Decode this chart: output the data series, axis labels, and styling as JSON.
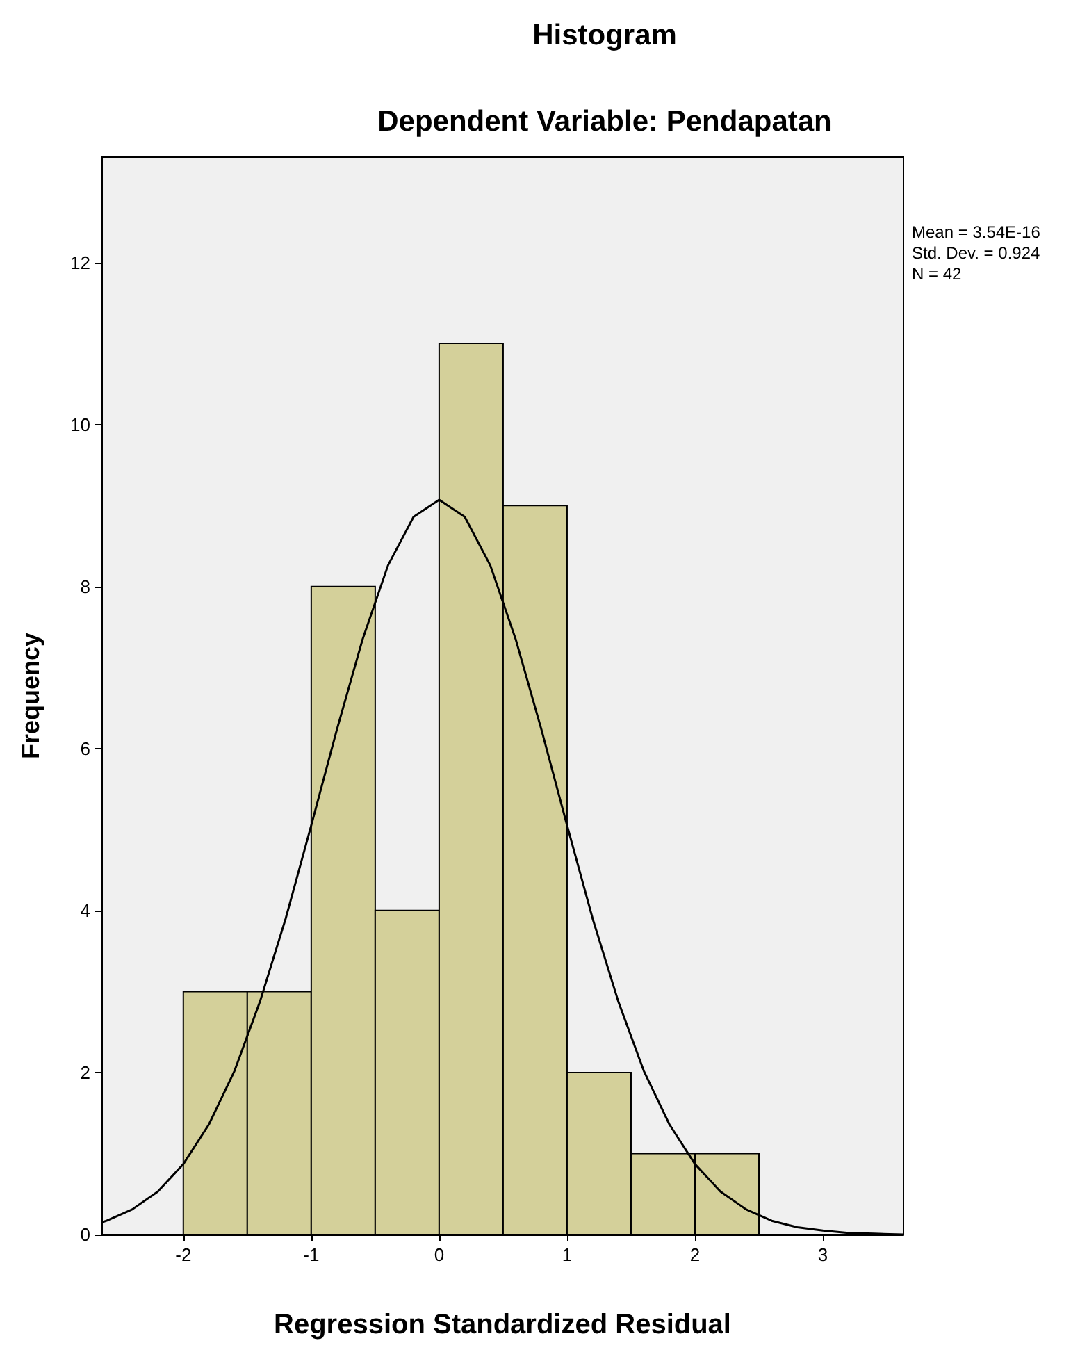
{
  "chart_data": {
    "type": "histogram",
    "title": "Histogram",
    "subtitle": "Dependent Variable: Pendapatan",
    "xlabel": "Regression Standardized Residual",
    "ylabel": "Frequency",
    "annotations": [
      "Mean = 3.54E-16",
      "Std. Dev. = 0.924",
      "N = 42"
    ],
    "series": [
      {
        "color": "#d4d09a",
        "bins": [
          -2,
          -1.5,
          -1,
          -0.5,
          0,
          0.5,
          1,
          1.5,
          2,
          2.5
        ],
        "values": [
          3,
          3,
          8,
          4,
          11,
          9,
          2,
          1,
          1
        ]
      },
      {
        "type": "line",
        "color": "#000000",
        "x": [
          -2.64,
          -2.6,
          -2.4,
          -2.2,
          -2.0,
          -1.8,
          -1.6,
          -1.4,
          -1.2,
          -1.0,
          -0.8,
          -0.6,
          -0.4,
          -0.2,
          0,
          0.2,
          0.4,
          0.6,
          0.8,
          1.0,
          1.2,
          1.4,
          1.6,
          1.8,
          2.0,
          2.2,
          2.4,
          2.6,
          2.8,
          3.0,
          3.2,
          3.4,
          3.63
        ],
        "values": [
          0.15,
          0.17,
          0.31,
          0.53,
          0.87,
          1.36,
          2.02,
          2.88,
          3.9,
          5.05,
          6.23,
          7.34,
          8.26,
          8.86,
          9.07,
          8.86,
          8.26,
          7.34,
          6.23,
          5.05,
          3.9,
          2.88,
          2.02,
          1.36,
          0.87,
          0.53,
          0.31,
          0.17,
          0.09,
          0.05,
          0.02,
          0.01,
          0.0
        ]
      }
    ],
    "xlim": [
      -2.64,
      3.63
    ],
    "ylim": [
      0,
      13.3
    ],
    "xticks": [
      -2,
      -1,
      0,
      1,
      2,
      3
    ],
    "yticks": [
      0,
      2,
      4,
      6,
      8,
      10,
      12
    ],
    "grid": false,
    "marker": "none",
    "line_style": "solid"
  }
}
